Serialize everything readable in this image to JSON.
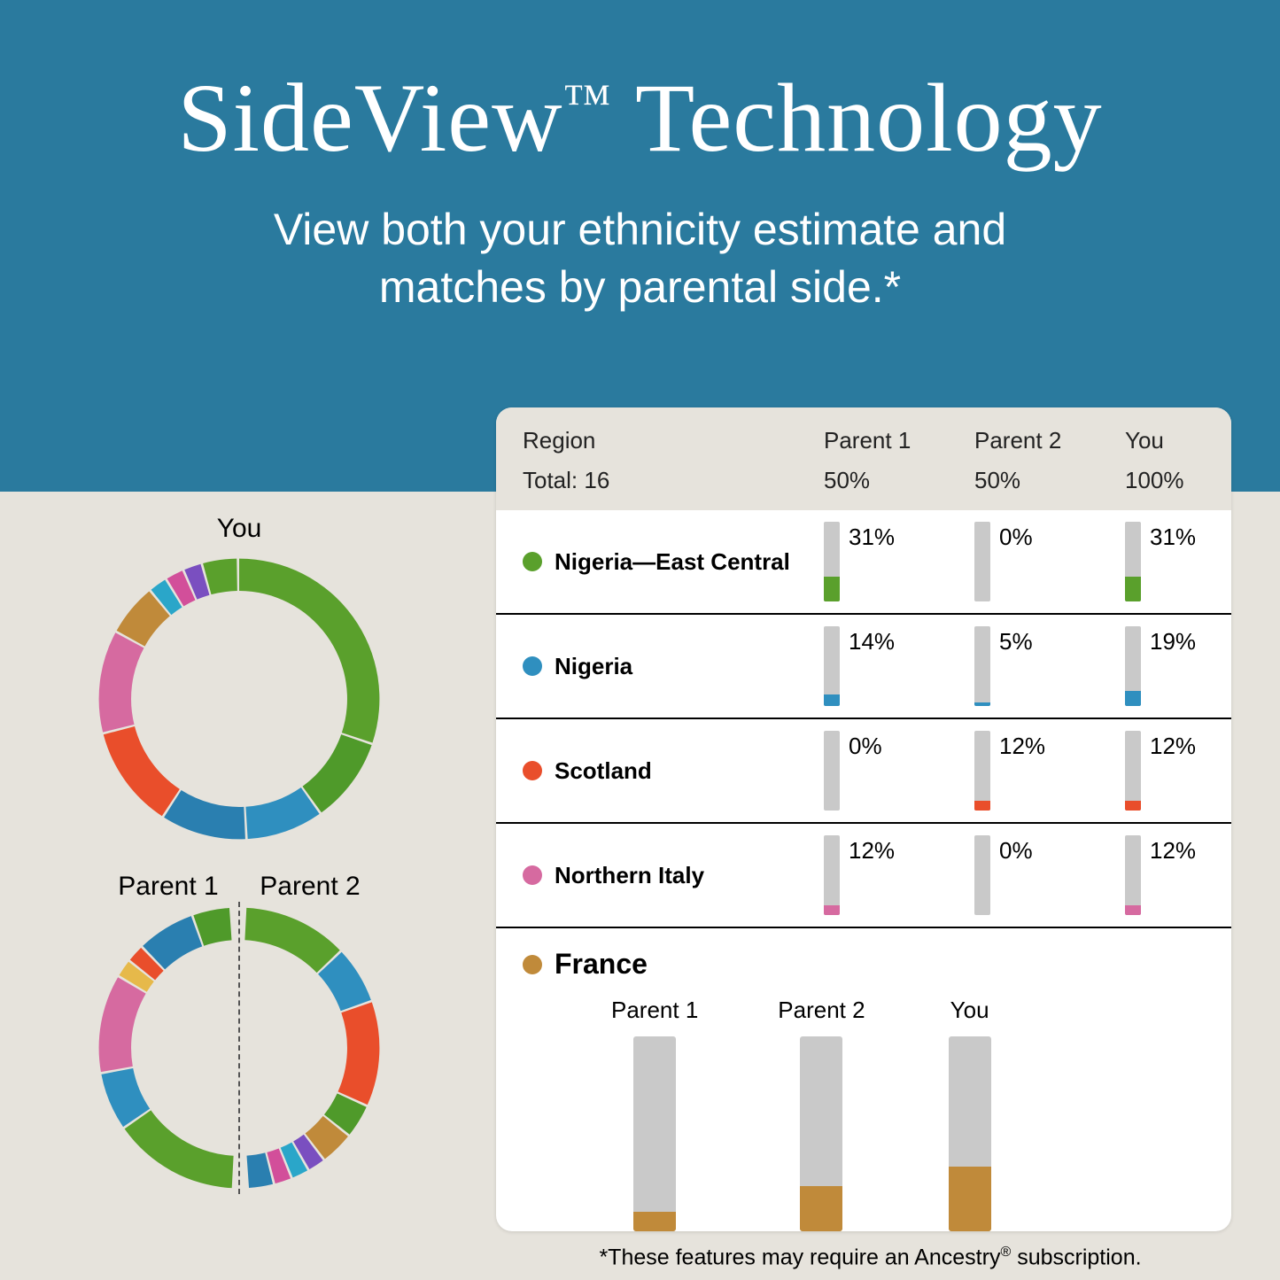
{
  "colors": {
    "header_bg": "#2a7a9e",
    "page_bg": "#e6e3dc",
    "card_bg": "#ffffff",
    "bar_track": "#c9c9c9",
    "text": "#000000",
    "header_text": "#ffffff"
  },
  "typography": {
    "title_font": "Georgia serif",
    "title_size_pt": 82,
    "subtitle_size_pt": 38,
    "body_size_pt": 20,
    "region_weight": 700
  },
  "header": {
    "title_main": "SideView",
    "title_tm": "™",
    "title_rest": " Technology",
    "subtitle_line1": "View both your ethnicity estimate and",
    "subtitle_line2": "matches by parental side.*"
  },
  "donuts": {
    "you_label": "You",
    "parent1_label": "Parent 1",
    "parent2_label": "Parent 2",
    "ring_thickness_ratio": 0.23,
    "you_segments": [
      {
        "color": "#5aa02c",
        "pct": 31
      },
      {
        "color": "#4f9a2a",
        "pct": 10
      },
      {
        "color": "#2f8fbf",
        "pct": 9
      },
      {
        "color": "#2a7fb0",
        "pct": 10
      },
      {
        "color": "#e94e2b",
        "pct": 12
      },
      {
        "color": "#d66aa0",
        "pct": 12
      },
      {
        "color": "#c08a3a",
        "pct": 6
      },
      {
        "color": "#2aa6c9",
        "pct": 2
      },
      {
        "color": "#d24f9a",
        "pct": 2
      },
      {
        "color": "#7a4fc0",
        "pct": 2
      },
      {
        "color": "#5aa02c",
        "pct": 4
      }
    ],
    "parent1_segments": [
      {
        "color": "#5aa02c",
        "pct": 31
      },
      {
        "color": "#2f8fbf",
        "pct": 14
      },
      {
        "color": "#d66aa0",
        "pct": 24
      },
      {
        "color": "#e6b94a",
        "pct": 4
      },
      {
        "color": "#e94e2b",
        "pct": 4
      },
      {
        "color": "#2a7fb0",
        "pct": 14
      },
      {
        "color": "#4f9a2a",
        "pct": 9
      }
    ],
    "parent2_segments": [
      {
        "color": "#5aa02c",
        "pct": 26
      },
      {
        "color": "#2f8fbf",
        "pct": 14
      },
      {
        "color": "#e94e2b",
        "pct": 26
      },
      {
        "color": "#4f9a2a",
        "pct": 8
      },
      {
        "color": "#c08a3a",
        "pct": 8
      },
      {
        "color": "#7a4fc0",
        "pct": 4
      },
      {
        "color": "#2aa6c9",
        "pct": 4
      },
      {
        "color": "#d24f9a",
        "pct": 4
      },
      {
        "color": "#2a7fb0",
        "pct": 6
      }
    ]
  },
  "table": {
    "head": {
      "region": "Region",
      "parent1": "Parent 1",
      "parent2": "Parent 2",
      "you": "You",
      "total_label": "Total: 16",
      "parent1_total": "50%",
      "parent2_total": "50%",
      "you_total": "100%"
    },
    "bar_scale_max": 100,
    "rows": [
      {
        "region": "Nigeria—East Central",
        "color": "#5aa02c",
        "p1": 31,
        "p2": 0,
        "you": 31
      },
      {
        "region": "Nigeria",
        "color": "#2f8fbf",
        "p1": 14,
        "p2": 5,
        "you": 19
      },
      {
        "region": "Scotland",
        "color": "#e94e2b",
        "p1": 0,
        "p2": 12,
        "you": 12
      },
      {
        "region": "Northern Italy",
        "color": "#d66aa0",
        "p1": 12,
        "p2": 0,
        "you": 12
      }
    ]
  },
  "france": {
    "label": "France",
    "color": "#c08a3a",
    "bar_scale_max": 30,
    "cols": [
      {
        "label": "Parent 1",
        "value": 3
      },
      {
        "label": "Parent 2",
        "value": 7
      },
      {
        "label": "You",
        "value": 10
      }
    ]
  },
  "footnote": {
    "prefix": "*These features may require an Ancestry",
    "reg": "®",
    "suffix": " subscription."
  }
}
